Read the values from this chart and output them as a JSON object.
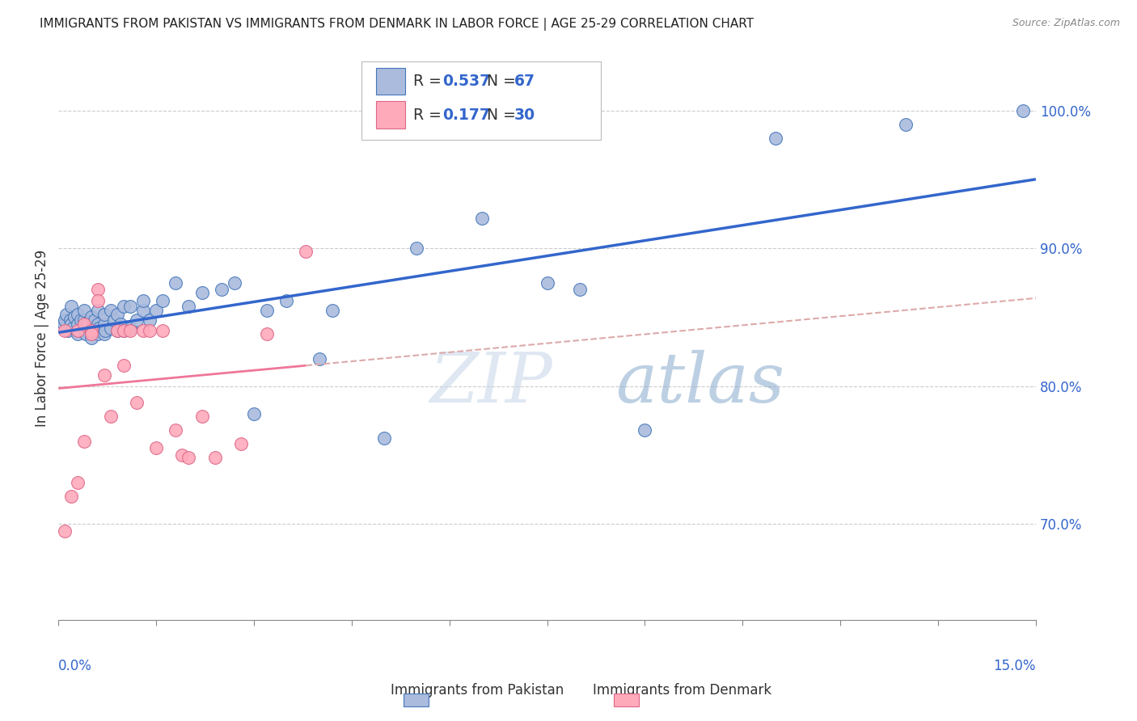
{
  "title": "IMMIGRANTS FROM PAKISTAN VS IMMIGRANTS FROM DENMARK IN LABOR FORCE | AGE 25-29 CORRELATION CHART",
  "source": "Source: ZipAtlas.com",
  "ylabel": "In Labor Force | Age 25-29",
  "right_yticks": [
    0.7,
    0.8,
    0.9,
    1.0
  ],
  "right_yticklabels": [
    "70.0%",
    "80.0%",
    "90.0%",
    "100.0%"
  ],
  "xmin": 0.0,
  "xmax": 0.15,
  "ymin": 0.63,
  "ymax": 1.04,
  "pakistan_R": 0.537,
  "pakistan_N": 67,
  "denmark_R": 0.177,
  "denmark_N": 30,
  "blue_fill": "#AABBDD",
  "blue_edge": "#4477BB",
  "pink_fill": "#FFAABB",
  "pink_edge": "#DD6688",
  "blue_line_color": "#3366CC",
  "pink_line_color": "#EE7799",
  "pink_dash_color": "#DDAAAA",
  "text_blue": "#3366CC",
  "watermark_color": "#C8D8EE",
  "grid_color": "#CCCCCC",
  "axis_color": "#888888",
  "title_color": "#222222",
  "source_color": "#888888",
  "pakistan_x": [
    0.0008,
    0.001,
    0.0012,
    0.0015,
    0.0018,
    0.002,
    0.002,
    0.0022,
    0.0025,
    0.003,
    0.003,
    0.003,
    0.0032,
    0.0035,
    0.004,
    0.004,
    0.004,
    0.0042,
    0.0045,
    0.005,
    0.005,
    0.005,
    0.0052,
    0.0055,
    0.006,
    0.006,
    0.006,
    0.0062,
    0.007,
    0.007,
    0.007,
    0.0072,
    0.008,
    0.008,
    0.0085,
    0.009,
    0.009,
    0.0095,
    0.01,
    0.01,
    0.011,
    0.011,
    0.012,
    0.013,
    0.013,
    0.014,
    0.015,
    0.016,
    0.018,
    0.02,
    0.022,
    0.025,
    0.027,
    0.03,
    0.032,
    0.035,
    0.04,
    0.042,
    0.05,
    0.055,
    0.065,
    0.075,
    0.08,
    0.09,
    0.11,
    0.13,
    0.148
  ],
  "pakistan_y": [
    0.845,
    0.848,
    0.852,
    0.84,
    0.848,
    0.845,
    0.858,
    0.842,
    0.85,
    0.838,
    0.845,
    0.852,
    0.84,
    0.848,
    0.842,
    0.848,
    0.855,
    0.838,
    0.845,
    0.835,
    0.842,
    0.85,
    0.84,
    0.848,
    0.838,
    0.845,
    0.855,
    0.842,
    0.838,
    0.845,
    0.852,
    0.84,
    0.842,
    0.855,
    0.848,
    0.84,
    0.852,
    0.845,
    0.84,
    0.858,
    0.842,
    0.858,
    0.848,
    0.855,
    0.862,
    0.848,
    0.855,
    0.862,
    0.875,
    0.858,
    0.868,
    0.87,
    0.875,
    0.78,
    0.855,
    0.862,
    0.82,
    0.855,
    0.762,
    0.9,
    0.922,
    0.875,
    0.87,
    0.768,
    0.98,
    0.99,
    1.0
  ],
  "denmark_x": [
    0.001,
    0.001,
    0.002,
    0.003,
    0.003,
    0.004,
    0.004,
    0.005,
    0.005,
    0.006,
    0.006,
    0.007,
    0.008,
    0.009,
    0.01,
    0.01,
    0.011,
    0.012,
    0.013,
    0.014,
    0.015,
    0.016,
    0.018,
    0.019,
    0.02,
    0.022,
    0.024,
    0.028,
    0.032,
    0.038
  ],
  "denmark_y": [
    0.84,
    0.695,
    0.72,
    0.84,
    0.73,
    0.76,
    0.845,
    0.84,
    0.838,
    0.87,
    0.862,
    0.808,
    0.778,
    0.84,
    0.815,
    0.84,
    0.84,
    0.788,
    0.84,
    0.84,
    0.755,
    0.84,
    0.768,
    0.75,
    0.748,
    0.778,
    0.748,
    0.758,
    0.838,
    0.898
  ]
}
